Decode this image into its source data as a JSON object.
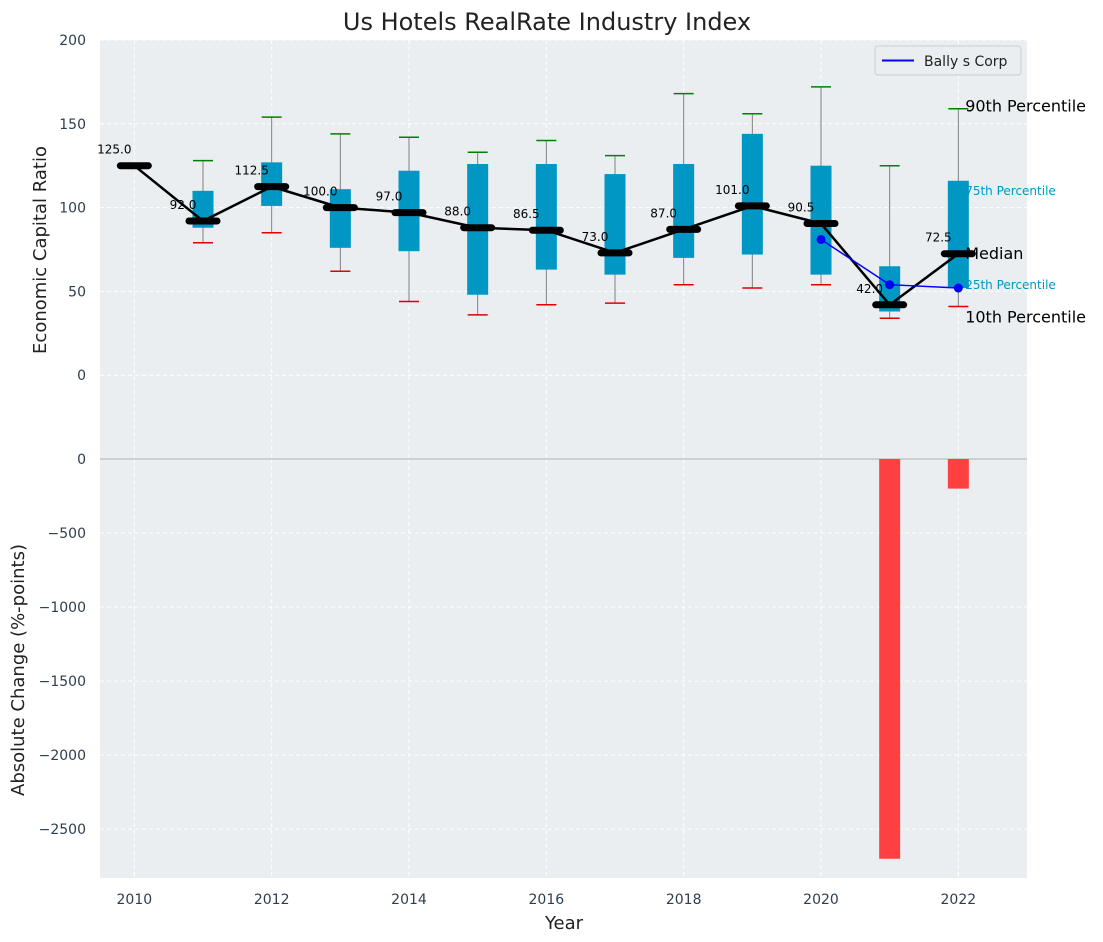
{
  "chart_data": [
    {
      "type": "box",
      "title": "Us Hotels RealRate Industry Index",
      "ylabel": "Economic Capital Ratio",
      "xlim": [
        2009.5,
        2023
      ],
      "ylim": [
        -50,
        200
      ],
      "yticks": [
        0,
        50,
        100,
        150,
        200
      ],
      "grid": true,
      "legend": {
        "placement": "top-right",
        "entries": [
          "Bally s Corp"
        ]
      },
      "years": [
        2010,
        2011,
        2012,
        2013,
        2014,
        2015,
        2016,
        2017,
        2018,
        2019,
        2020,
        2021,
        2022
      ],
      "p10": [
        null,
        79,
        85,
        62,
        44,
        36,
        42,
        43,
        54,
        52,
        54,
        34,
        41
      ],
      "p25": [
        null,
        88,
        101,
        76,
        74,
        48,
        63,
        60,
        70,
        72,
        60,
        38,
        52
      ],
      "median": [
        125,
        92,
        112.5,
        100,
        97,
        88,
        86.5,
        73,
        87,
        101,
        90.5,
        42,
        72.5
      ],
      "median_labels": [
        "125.0",
        "92.0",
        "112.5",
        "100.0",
        "97.0",
        "88.0",
        "86.5",
        "73.0",
        "87.0",
        "101.0",
        "90.5",
        "42.0",
        "72.5"
      ],
      "p75": [
        null,
        110,
        127,
        111,
        122,
        126,
        126,
        120,
        126,
        144,
        125,
        65,
        116
      ],
      "p90": [
        null,
        128,
        154,
        144,
        142,
        133,
        140,
        131,
        168,
        156,
        172,
        125,
        159
      ],
      "series": [
        {
          "name": "Bally s Corp",
          "x": [
            2020,
            2021,
            2022
          ],
          "values": [
            81,
            54,
            52
          ]
        }
      ],
      "annotations": [
        {
          "text": "90th Percentile",
          "x": 2022.1,
          "y": 161
        },
        {
          "text": "75th Percentile",
          "x": 2022.1,
          "y": 111
        },
        {
          "text": "Median",
          "x": 2022.1,
          "y": 73
        },
        {
          "text": "25th Percentile",
          "x": 2022.1,
          "y": 55
        },
        {
          "text": "10th Percentile",
          "x": 2022.1,
          "y": 35
        }
      ]
    },
    {
      "type": "bar",
      "xlabel": "Year",
      "ylabel": "Absolute Change (%-points)",
      "ylim": [
        -2830,
        0
      ],
      "yticks": [
        0,
        -500,
        -1000,
        -1500,
        -2000,
        -2500
      ],
      "ytick_labels": [
        "0",
        "−500",
        "−1000",
        "−1500",
        "−2000",
        "−2500"
      ],
      "xticks": [
        2010,
        2012,
        2014,
        2016,
        2018,
        2020,
        2022
      ],
      "grid": true,
      "categories": [
        2021,
        2022
      ],
      "values": [
        -2700,
        -200
      ]
    }
  ],
  "colors": {
    "plot_bg": "#eaeef0",
    "box": "#0097c4",
    "median": "#000000",
    "p90_cap": "#008000",
    "p10_cap": "#e00000",
    "whisker": "#808080",
    "company": "#0000ff",
    "bar_negative": "#ff4040",
    "grid": "#ffffff",
    "zero_line": "#b0b0b0"
  }
}
